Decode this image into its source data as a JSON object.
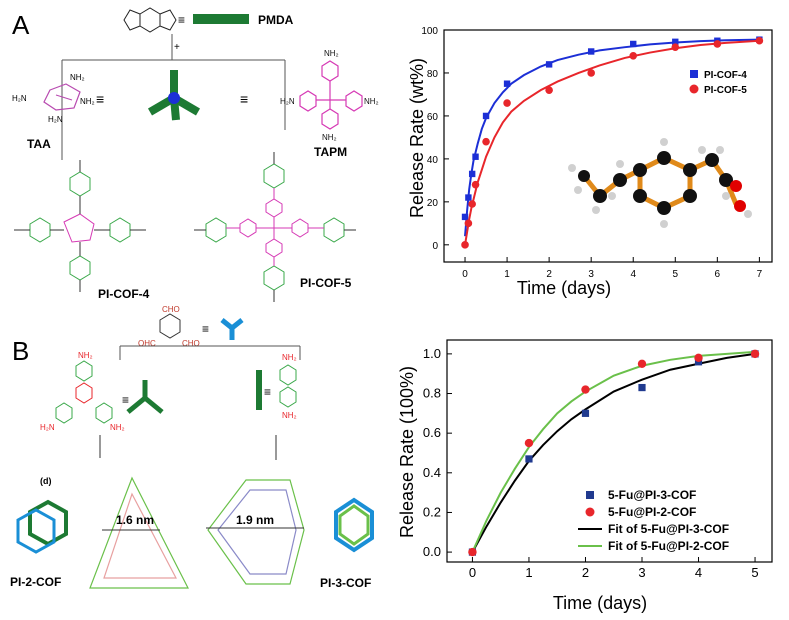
{
  "panels": {
    "a_label": "A",
    "b_label": "B"
  },
  "schemeA": {
    "pmda": "PMDA",
    "taa": "TAA",
    "tapm": "TAPM",
    "plus": "+",
    "equiv": "≡",
    "cof4": "PI-COF-4",
    "cof5": "PI-COF-5"
  },
  "schemeB": {
    "d_label": "(d)",
    "pore_16": "1.6 nm",
    "pore_19": "1.9 nm",
    "cof2": "PI-2-COF",
    "cof3": "PI-3-COF",
    "cho": "CHO",
    "ohc": "OHC",
    "nh2": "NH₂",
    "h2n": "H₂N",
    "equiv": "≡"
  },
  "colors": {
    "blue": "#1c2fd6",
    "red": "#e8262b",
    "green_dark": "#1d7a33",
    "green_light": "#6ac04a",
    "magenta": "#d63ab5",
    "cyan": "#1a8fd6",
    "navy": "#203a8f",
    "black": "#000000",
    "orange": "#e08a1a"
  },
  "chart_data": [
    {
      "type": "scatter",
      "xlabel": "Time (days)",
      "ylabel": "Release Rate (wt%)",
      "xlim": [
        -0.5,
        7.3
      ],
      "ylim": [
        -8,
        100
      ],
      "xticks": [
        0,
        1,
        2,
        3,
        4,
        5,
        6,
        7
      ],
      "yticks": [
        0,
        20,
        40,
        60,
        80,
        100
      ],
      "legend_position": "top-right",
      "series": [
        {
          "name": "PI-COF-4",
          "color": "#1c2fd6",
          "marker": "square",
          "x": [
            0,
            0.08,
            0.17,
            0.25,
            0.5,
            1,
            2,
            3,
            4,
            5,
            6,
            7
          ],
          "y": [
            13,
            22,
            33,
            41,
            60,
            75,
            84,
            90,
            93.5,
            94.5,
            95,
            95.5
          ]
        },
        {
          "name": "PI-COF-5",
          "color": "#e8262b",
          "marker": "circle",
          "x": [
            0,
            0.08,
            0.17,
            0.25,
            0.5,
            1,
            2,
            3,
            4,
            5,
            6,
            7
          ],
          "y": [
            0,
            10,
            19,
            28,
            48,
            66,
            72,
            80,
            88,
            92,
            93.5,
            95
          ]
        }
      ],
      "fits": [
        {
          "color": "#1c2fd6",
          "x": [
            0,
            0.05,
            0.1,
            0.15,
            0.2,
            0.3,
            0.4,
            0.5,
            0.7,
            0.9,
            1.1,
            1.4,
            1.8,
            2.2,
            2.7,
            3.2,
            3.8,
            4.4,
            5,
            5.6,
            6.2,
            7
          ],
          "y": [
            4,
            16,
            26,
            33,
            39,
            47,
            54,
            59,
            66,
            71,
            75,
            79,
            83,
            86,
            88.5,
            90.5,
            92,
            93.3,
            94.2,
            94.8,
            95.2,
            95.5
          ]
        },
        {
          "color": "#e8262b",
          "x": [
            0,
            0.05,
            0.1,
            0.15,
            0.2,
            0.3,
            0.4,
            0.5,
            0.7,
            0.9,
            1.1,
            1.4,
            1.8,
            2.2,
            2.7,
            3.2,
            3.8,
            4.4,
            5,
            5.6,
            6.2,
            7
          ],
          "y": [
            0,
            6,
            12,
            17,
            21,
            29,
            35,
            41,
            50,
            57,
            62,
            67,
            72,
            76,
            80,
            83.5,
            87,
            89.5,
            91.5,
            93,
            94,
            95
          ]
        }
      ]
    },
    {
      "type": "scatter",
      "xlabel": "Time (days)",
      "ylabel": "Release Rate (100%)",
      "xlim": [
        -0.45,
        5.3
      ],
      "ylim": [
        -0.05,
        1.07
      ],
      "xticks": [
        0,
        1,
        2,
        3,
        4,
        5
      ],
      "yticks": [
        0.0,
        0.2,
        0.4,
        0.6,
        0.8,
        1.0
      ],
      "ytick_labels": [
        "0.0",
        "0.2",
        "0.4",
        "0.6",
        "0.8",
        "1.0"
      ],
      "legend_position": "bottom-right",
      "series": [
        {
          "name": "5-Fu@PI-3-COF",
          "color": "#203a8f",
          "marker": "square",
          "x": [
            0,
            1,
            2,
            3,
            4,
            5
          ],
          "y": [
            0.0,
            0.47,
            0.7,
            0.83,
            0.96,
            1.0
          ]
        },
        {
          "name": "5-Fu@PI-2-COF",
          "color": "#e8262b",
          "marker": "circle",
          "x": [
            0,
            1,
            2,
            3,
            4,
            5
          ],
          "y": [
            0.0,
            0.55,
            0.82,
            0.95,
            0.98,
            1.0
          ]
        }
      ],
      "fits": [
        {
          "name": "Fit of 5-Fu@PI-3-COF",
          "color": "#000000",
          "x": [
            0,
            0.25,
            0.5,
            0.75,
            1,
            1.25,
            1.5,
            1.75,
            2,
            2.5,
            3,
            3.5,
            4,
            4.5,
            5
          ],
          "y": [
            0.0,
            0.13,
            0.25,
            0.36,
            0.46,
            0.54,
            0.61,
            0.67,
            0.72,
            0.81,
            0.87,
            0.92,
            0.95,
            0.98,
            1.0
          ]
        },
        {
          "name": "Fit of 5-Fu@PI-2-COF",
          "color": "#6ac04a",
          "x": [
            0,
            0.25,
            0.5,
            0.75,
            1,
            1.25,
            1.5,
            1.75,
            2,
            2.5,
            3,
            3.5,
            4,
            4.5,
            5
          ],
          "y": [
            0.0,
            0.16,
            0.3,
            0.42,
            0.53,
            0.62,
            0.7,
            0.76,
            0.81,
            0.89,
            0.94,
            0.97,
            0.99,
            1.0,
            1.01
          ]
        }
      ]
    }
  ]
}
